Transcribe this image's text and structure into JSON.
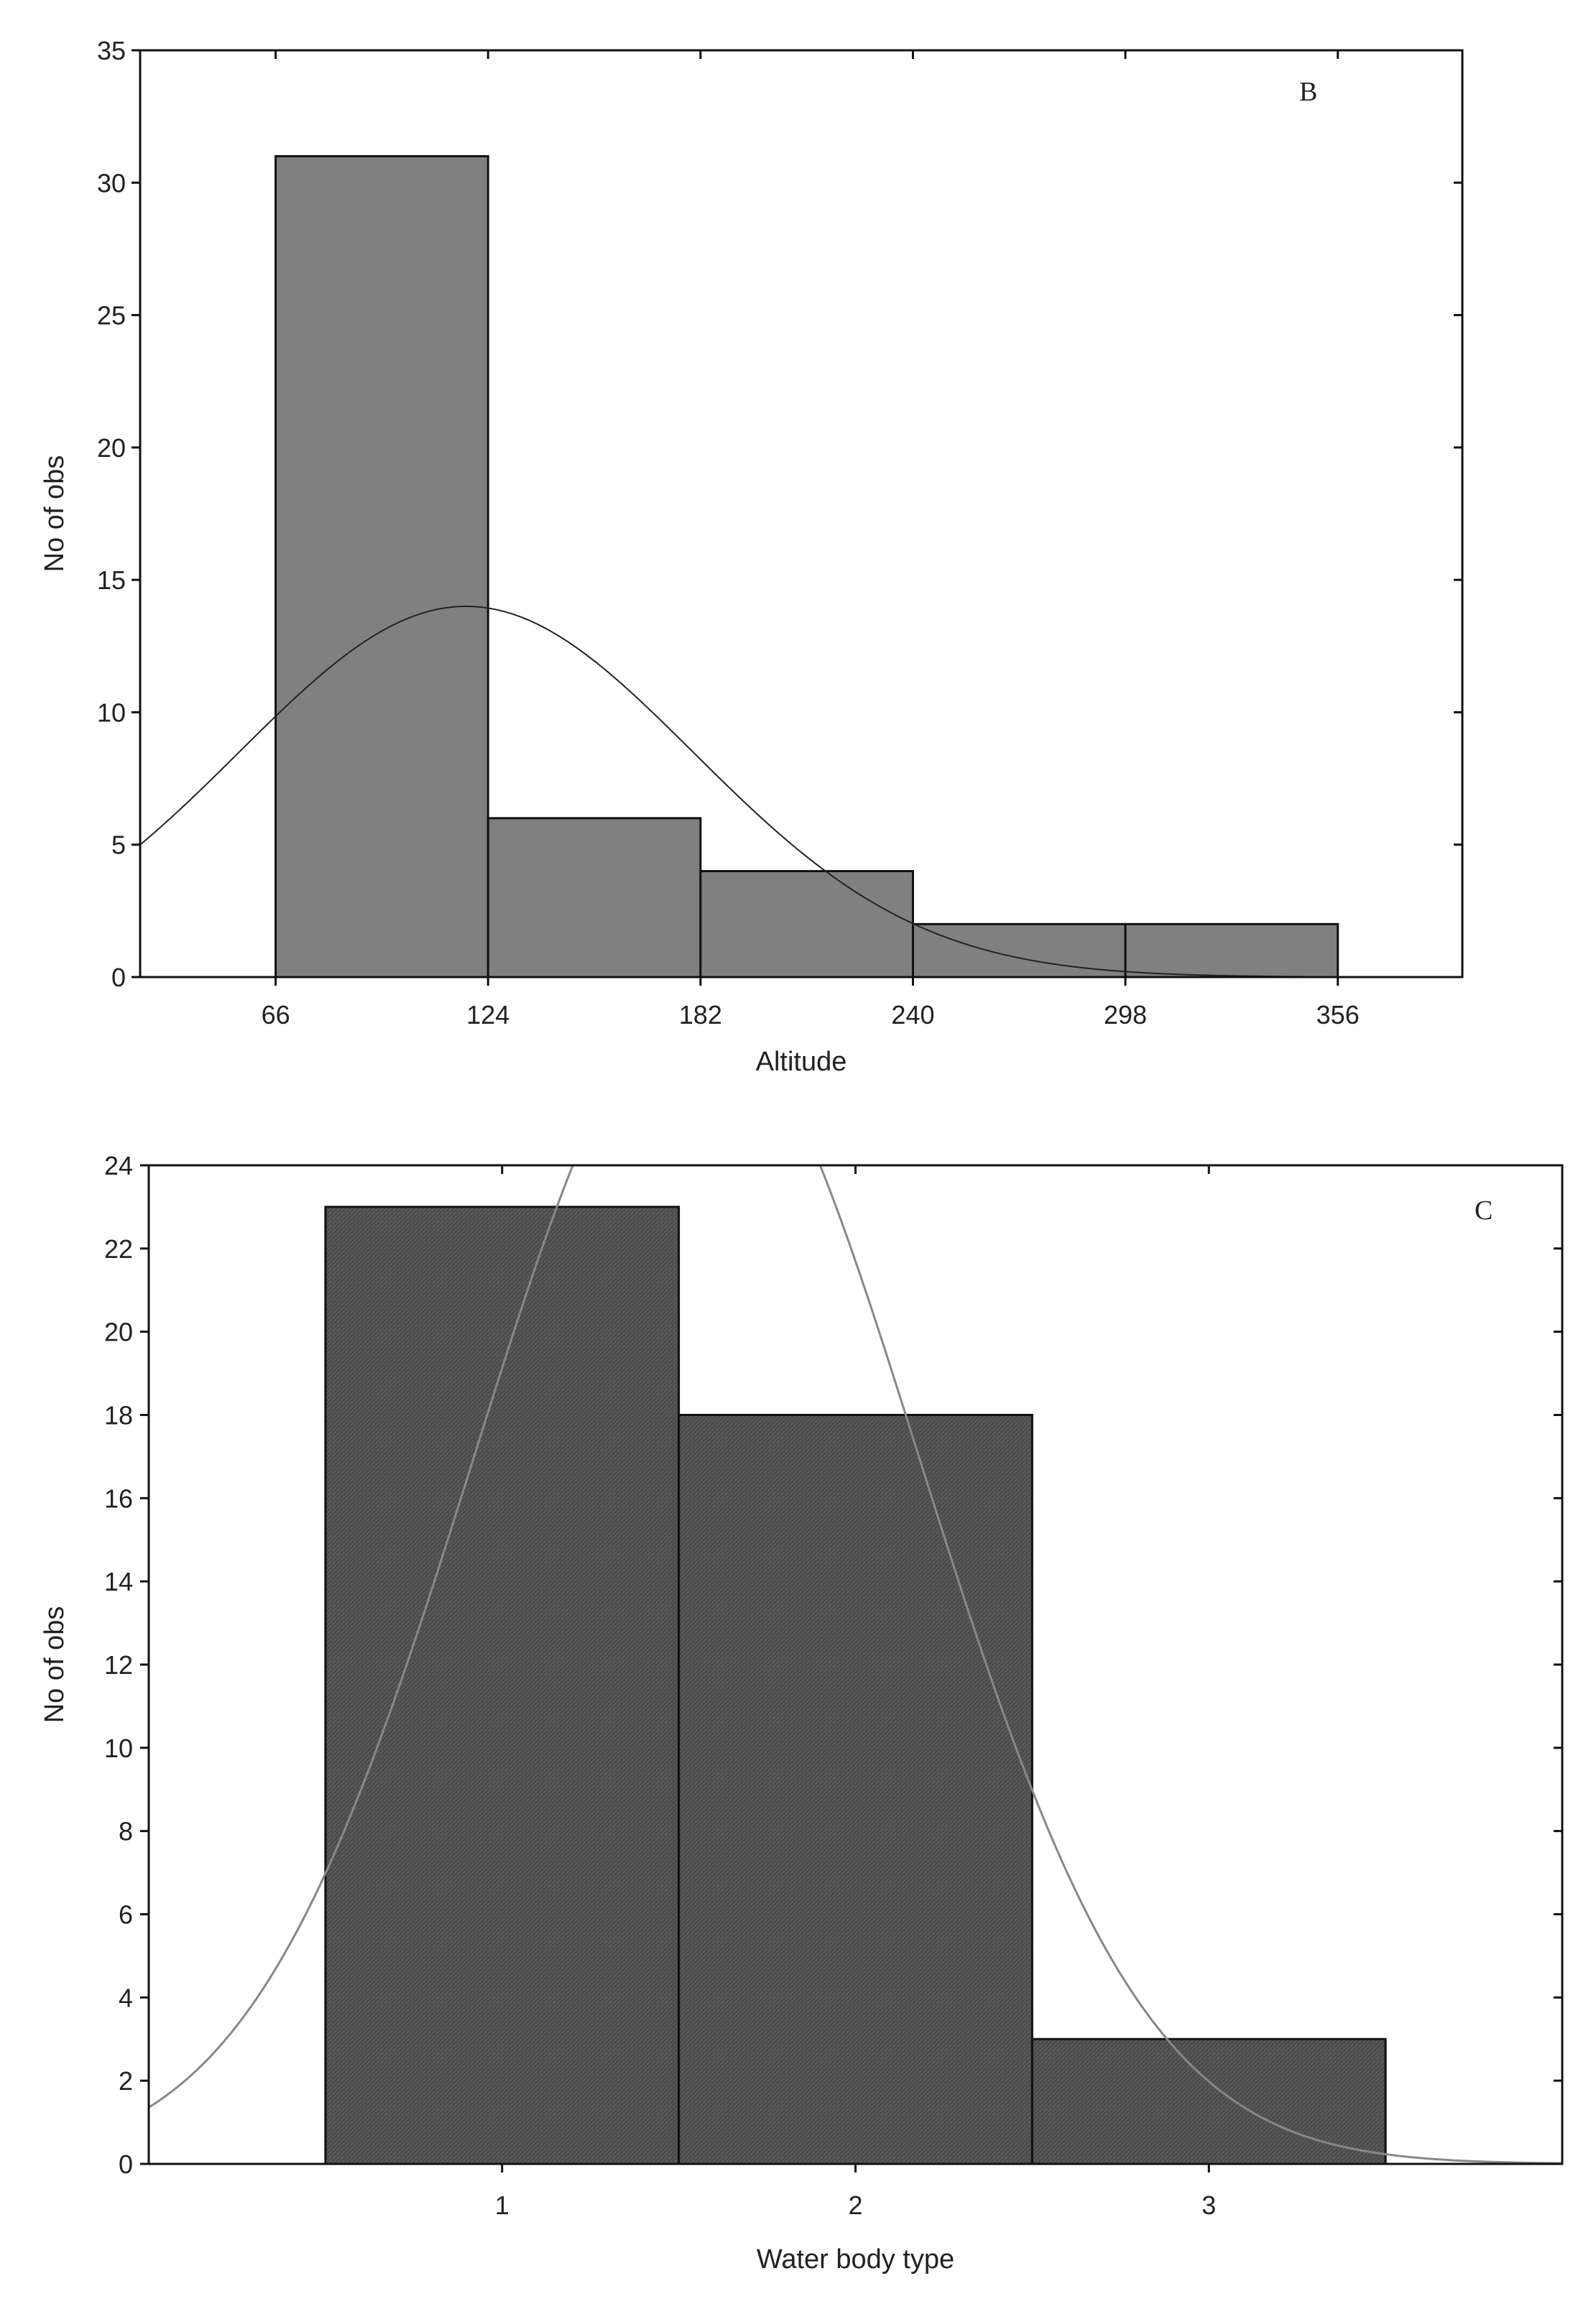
{
  "chart_data": [
    {
      "type": "bar",
      "panel_label": "B",
      "xlabel": "Altitude",
      "ylabel": "No of obs",
      "xlim": [
        29,
        390
      ],
      "ylim": [
        0,
        35
      ],
      "x_ticks": [
        66,
        124,
        182,
        240,
        298,
        356
      ],
      "y_ticks": [
        0,
        5,
        10,
        15,
        20,
        25,
        30,
        35
      ],
      "bins": [
        {
          "from": 66,
          "to": 124,
          "value": 31
        },
        {
          "from": 124,
          "to": 182,
          "value": 6
        },
        {
          "from": 182,
          "to": 240,
          "value": 4
        },
        {
          "from": 240,
          "to": 298,
          "value": 2
        },
        {
          "from": 298,
          "to": 356,
          "value": 2
        }
      ],
      "normal_curve": {
        "mean": 118,
        "sd": 62,
        "peak": 14
      },
      "bar_color": "#808080",
      "grid": false
    },
    {
      "type": "bar",
      "panel_label": "C",
      "xlabel": "Water body type",
      "ylabel": "No of obs",
      "xlim": [
        0.0,
        4.0
      ],
      "ylim": [
        0,
        24
      ],
      "x_ticks": [
        1,
        2,
        3
      ],
      "y_ticks": [
        0,
        2,
        4,
        6,
        8,
        10,
        12,
        14,
        16,
        18,
        20,
        22,
        24
      ],
      "bins": [
        {
          "from": 0.5,
          "to": 1.5,
          "value": 23
        },
        {
          "from": 1.5,
          "to": 2.5,
          "value": 18
        },
        {
          "from": 2.5,
          "to": 3.5,
          "value": 3
        }
      ],
      "normal_curve": {
        "mean": 1.55,
        "sd": 0.63,
        "peak": 28
      },
      "bar_color": "#4d4d4d",
      "grid": false
    }
  ]
}
